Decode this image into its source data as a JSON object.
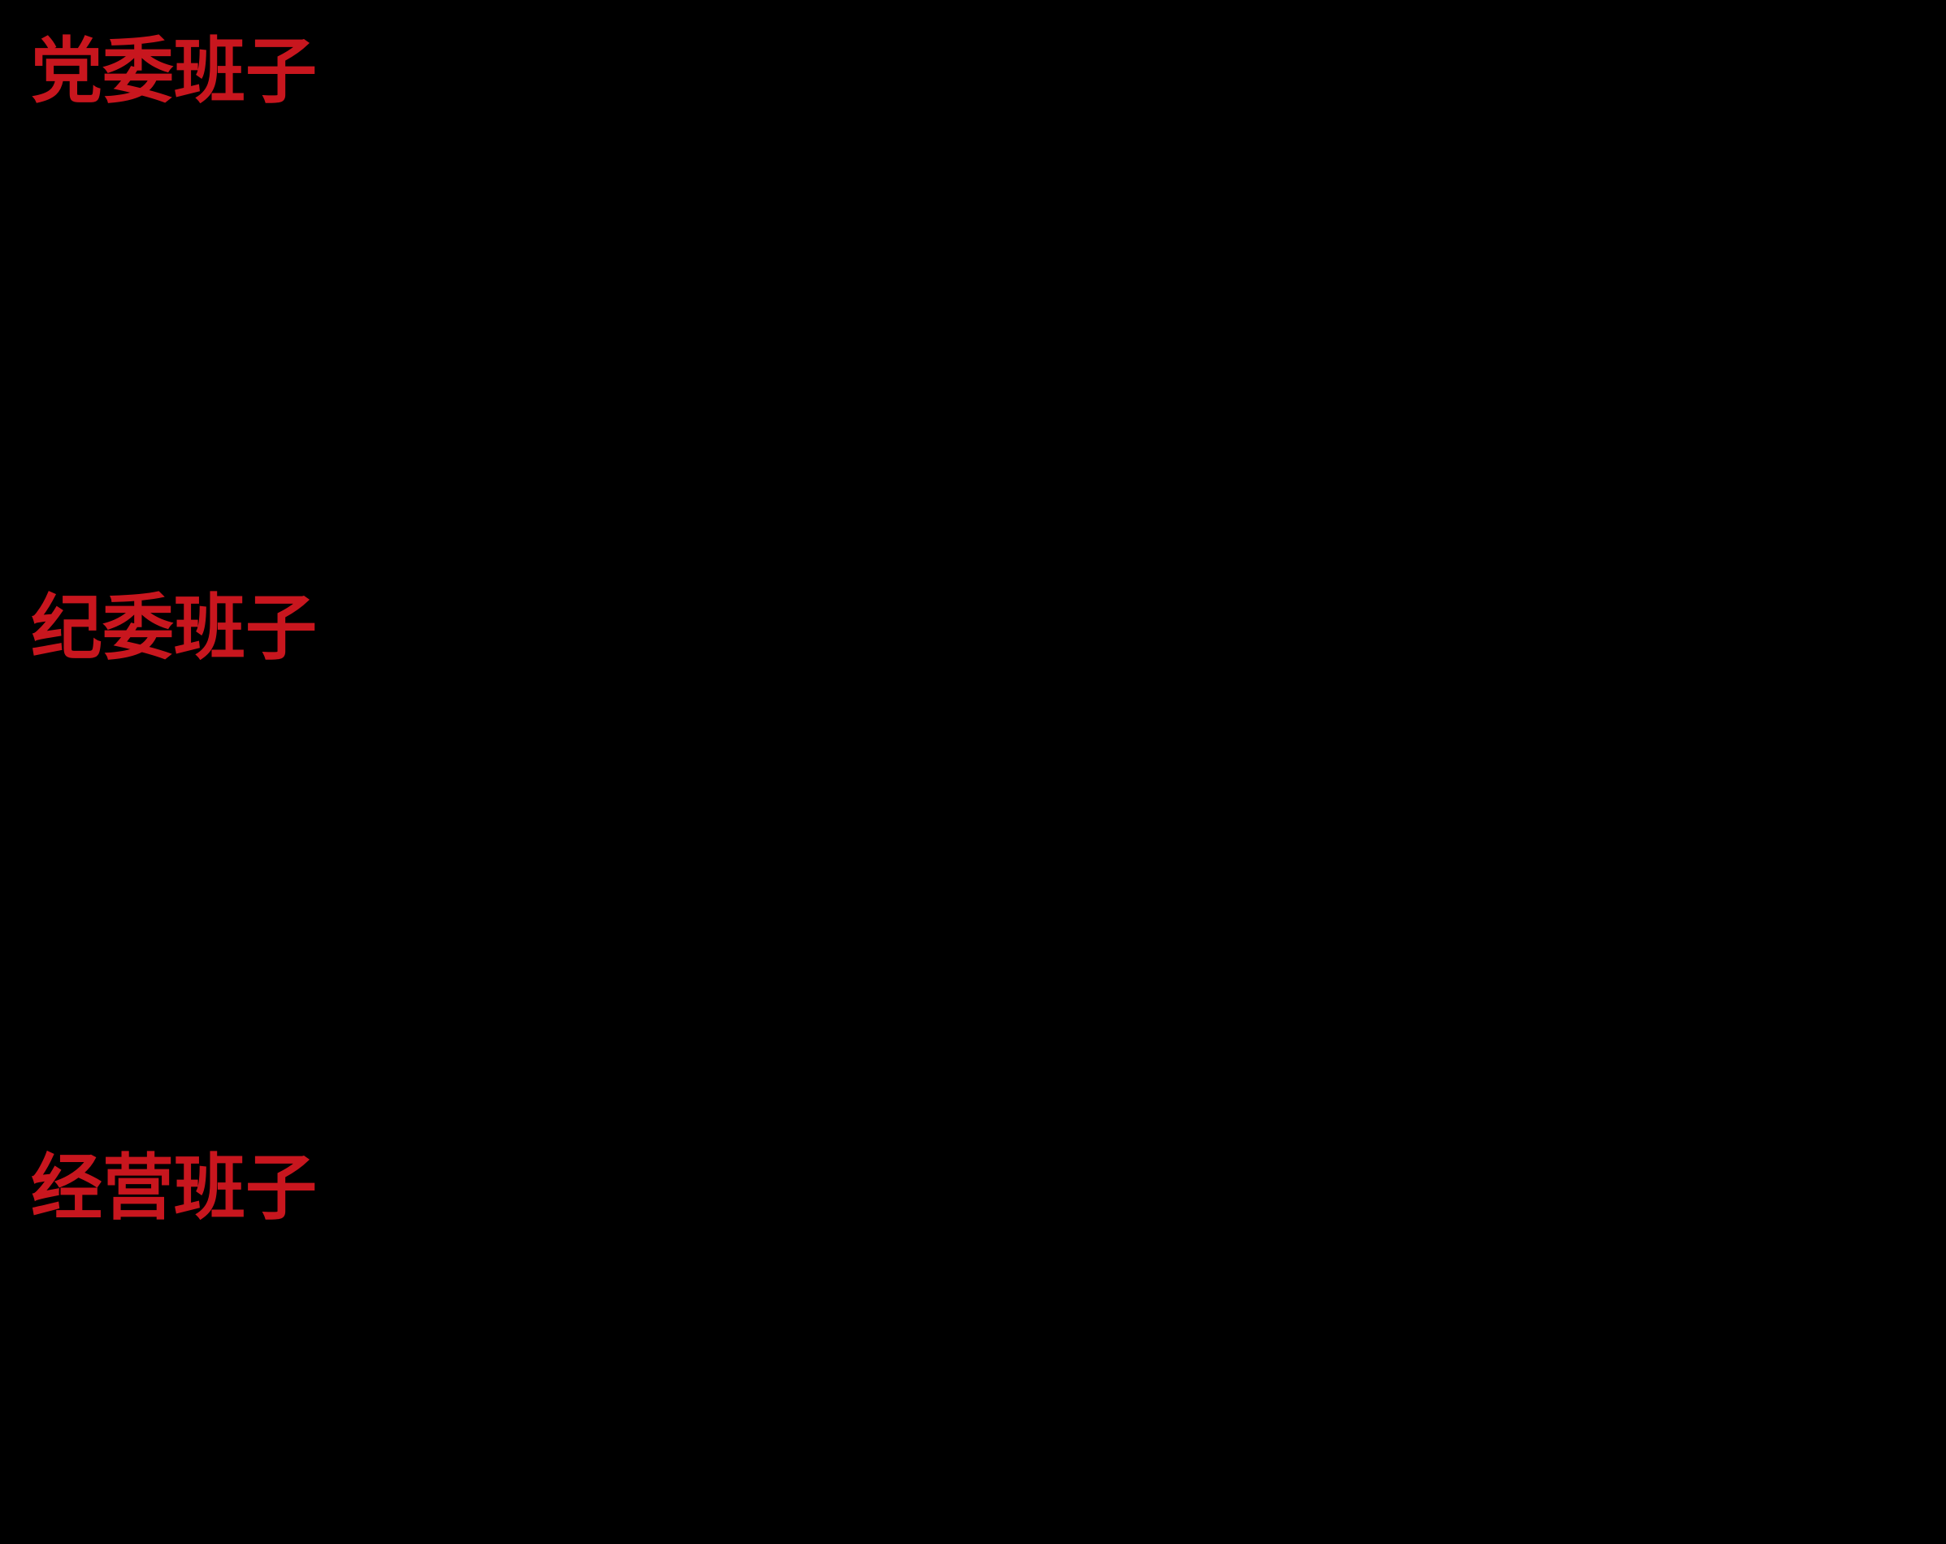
{
  "page": {
    "background_color": "#000000",
    "heading_color": "#C8161E"
  },
  "sections": [
    {
      "title": "党委班子"
    },
    {
      "title": "纪委班子"
    },
    {
      "title": "经营班子"
    }
  ]
}
